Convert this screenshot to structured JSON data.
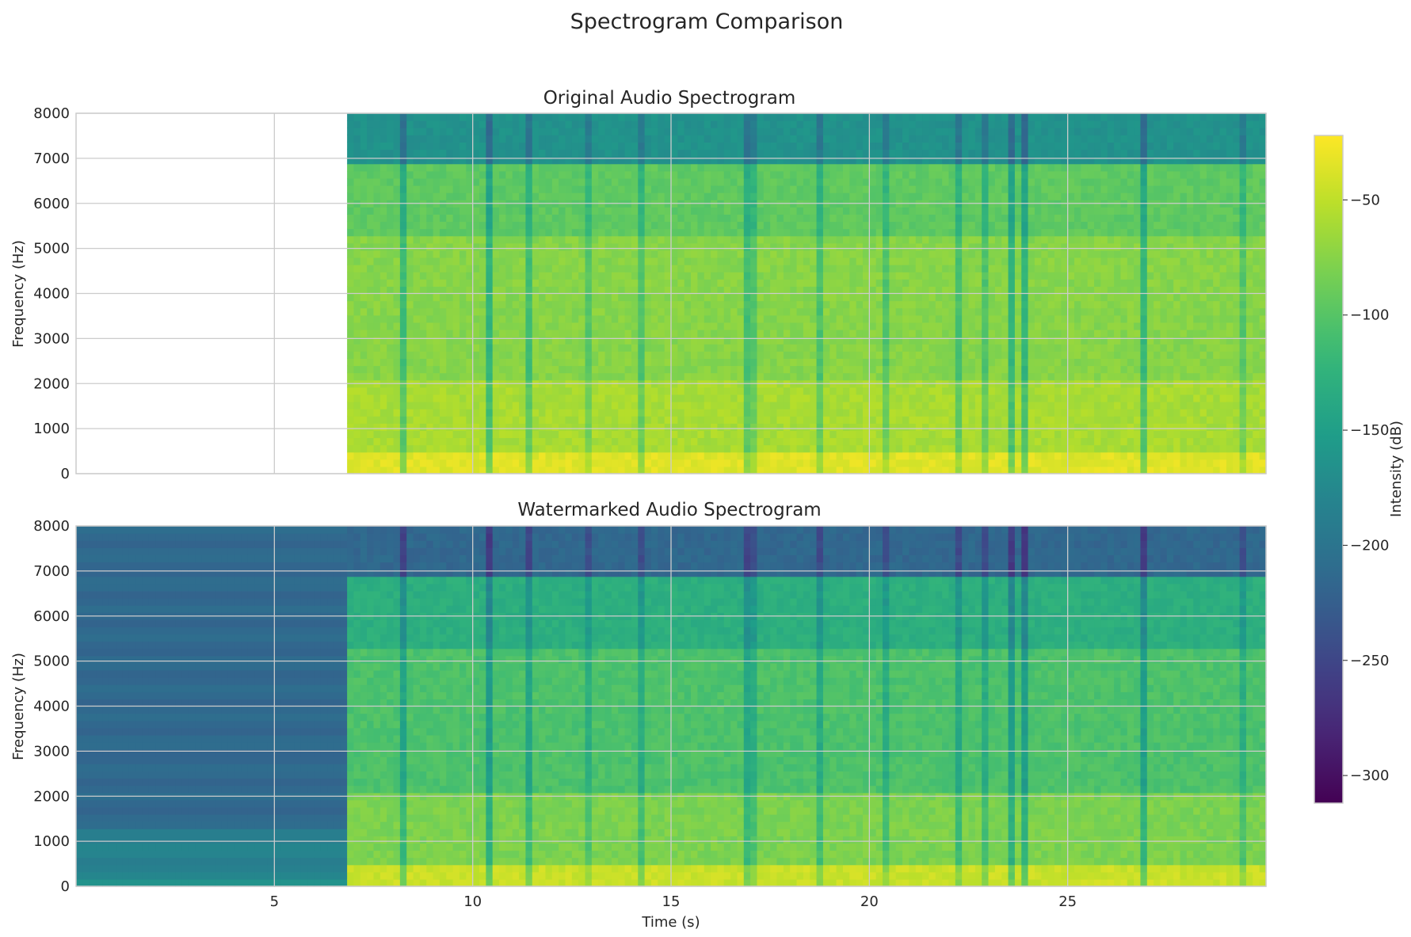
{
  "chart_data": {
    "title": "Spectrogram Comparison",
    "type": "heatmap",
    "colormap": "viridis",
    "colors": {
      "min": "#440154",
      "max": "#fde725",
      "grid": "#cccccc",
      "frame": "#cccccc"
    },
    "colorbar": {
      "label": "Intensity (dB)",
      "range": [
        -312,
        -22
      ],
      "ticks": [
        -300,
        -250,
        -200,
        -150,
        -100,
        -50
      ],
      "tick_labels": [
        "−300",
        "−250",
        "−200",
        "−150",
        "−100",
        "−50"
      ]
    },
    "shared_x": {
      "label": "Time (s)",
      "range": [
        0,
        30
      ],
      "ticks": [
        5,
        10,
        15,
        20,
        25
      ],
      "tick_labels": [
        "5",
        "10",
        "15",
        "20",
        "25"
      ]
    },
    "panels": [
      {
        "title": "Original Audio Spectrogram",
        "ylabel": "Frequency (Hz)",
        "ylim": [
          0,
          8000
        ],
        "y_ticks": [
          0,
          1000,
          2000,
          3000,
          4000,
          5000,
          6000,
          7000,
          8000
        ],
        "y_tick_labels": [
          "0",
          "1000",
          "2000",
          "3000",
          "4000",
          "5000",
          "6000",
          "7000",
          "8000"
        ],
        "silence_until_s": 6.8,
        "silence_level_db": null,
        "levels_db_by_frequency": {
          "0-500": -35,
          "500-2000": -60,
          "2000-5200": -75,
          "5200-6800": -95,
          "6800-8000": -165
        }
      },
      {
        "title": "Watermarked Audio Spectrogram",
        "ylabel": "Frequency (Hz)",
        "ylim": [
          0,
          8000
        ],
        "y_ticks": [
          0,
          1000,
          2000,
          3000,
          4000,
          5000,
          6000,
          7000,
          8000
        ],
        "y_tick_labels": [
          "0",
          "1000",
          "2000",
          "3000",
          "4000",
          "5000",
          "6000",
          "7000",
          "8000"
        ],
        "silence_until_s": 6.8,
        "silence_level_db": -220,
        "levels_db_by_frequency": {
          "0-500": -45,
          "500-2000": -80,
          "2000-5200": -105,
          "5200-6800": -130,
          "6800-8000": -215
        }
      }
    ]
  }
}
